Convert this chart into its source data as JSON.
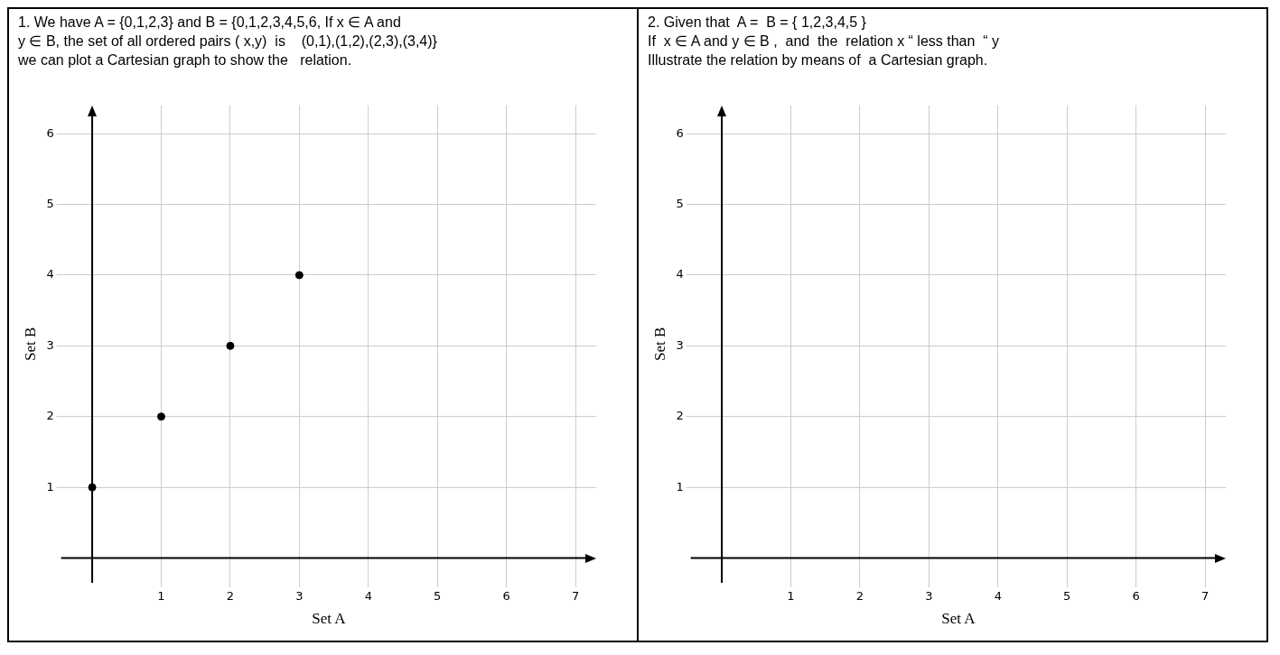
{
  "chart_data": [
    {
      "type": "scatter",
      "title": "1. We have A = {0,1,2,3} and B = {0,1,2,3,4,5,6, If x ∈ A and\ny ∈ B, the set of all ordered pairs ( x,y)  is    (0,1),(1,2),(2,3),(3,4)}\nwe can plot a Cartesian graph to show the   relation.",
      "x": [
        0,
        1,
        2,
        3
      ],
      "values": [
        1,
        2,
        3,
        4
      ],
      "color": "#000000",
      "marker": "circle",
      "xlabel": "Set A",
      "ylabel": "Set B",
      "xlim": [
        -0.45,
        7.3
      ],
      "ylim": [
        -0.35,
        6.4
      ],
      "xticks": [
        1,
        2,
        3,
        4,
        5,
        6,
        7
      ],
      "yticks": [
        1,
        2,
        3,
        4,
        5,
        6
      ],
      "grid": true,
      "legend": false
    },
    {
      "type": "scatter",
      "title": "2. Given that  A =  B = { 1,2,3,4,5 }\nIf  x ∈ A and y ∈ B ,  and  the  relation x “ less than  “ y\nIllustrate the relation by means of  a Cartesian graph.",
      "color": "#000000",
      "marker": "circle",
      "xlabel": "Set A",
      "ylabel": "Set B",
      "xlim": [
        -0.45,
        7.3
      ],
      "ylim": [
        -0.35,
        6.4
      ],
      "xticks": [
        1,
        2,
        3,
        4,
        5,
        6,
        7
      ],
      "yticks": [
        1,
        2,
        3,
        4,
        5,
        6
      ],
      "grid": true,
      "legend": false
    }
  ]
}
